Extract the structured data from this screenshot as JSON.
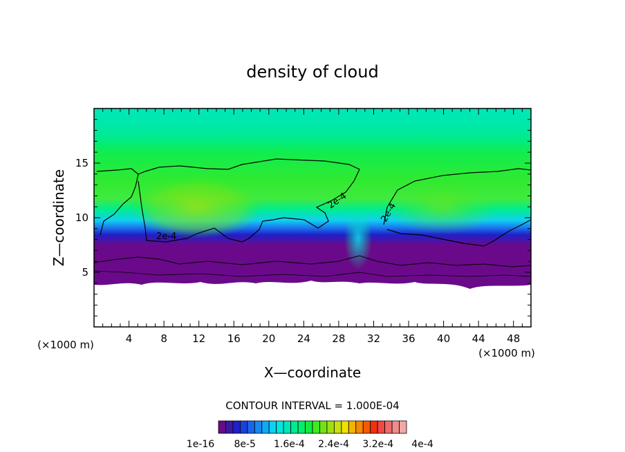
{
  "chart_data": {
    "type": "heatmap",
    "title": "density of cloud",
    "xlabel": "X—coordinate",
    "ylabel": "Z—coordinate",
    "x_unit": "(×1000 m)",
    "y_unit": "(×1000 m)",
    "xlim": [
      0,
      50
    ],
    "ylim": [
      0,
      20
    ],
    "x_ticks": [
      4,
      8,
      12,
      16,
      20,
      24,
      28,
      32,
      36,
      40,
      44,
      48
    ],
    "y_ticks": [
      5,
      10,
      15
    ],
    "contour_interval_text": "CONTOUR INTERVAL = 1.000E-04",
    "contour_label": "2e-4",
    "colorbar": {
      "labels": [
        "1e-16",
        "8e-5",
        "1.6e-4",
        "2.4e-4",
        "3.2e-4",
        "4e-4"
      ],
      "colors": [
        "#6a0a8a",
        "#3a1aa0",
        "#2020c8",
        "#1a40e0",
        "#1a64ec",
        "#1888f0",
        "#10aaf4",
        "#10d0f0",
        "#00e6e0",
        "#00e8b8",
        "#00ec90",
        "#00ee70",
        "#10ec40",
        "#40e820",
        "#70e418",
        "#a0e010",
        "#c8e010",
        "#f0e000",
        "#f4b400",
        "#f48a00",
        "#f45a00",
        "#f03010",
        "#f04848",
        "#f06a6a",
        "#f08c8c",
        "#f0a8a8"
      ]
    },
    "cloud_base_km": 4.0,
    "cloud_top_km": 20.0,
    "contour_2e4_regions": [
      {
        "x_range": [
          0,
          30
        ],
        "z_range": [
          8,
          15.3
        ]
      },
      {
        "x_range": [
          33,
          50
        ],
        "z_range": [
          7.2,
          14.3
        ]
      }
    ]
  }
}
